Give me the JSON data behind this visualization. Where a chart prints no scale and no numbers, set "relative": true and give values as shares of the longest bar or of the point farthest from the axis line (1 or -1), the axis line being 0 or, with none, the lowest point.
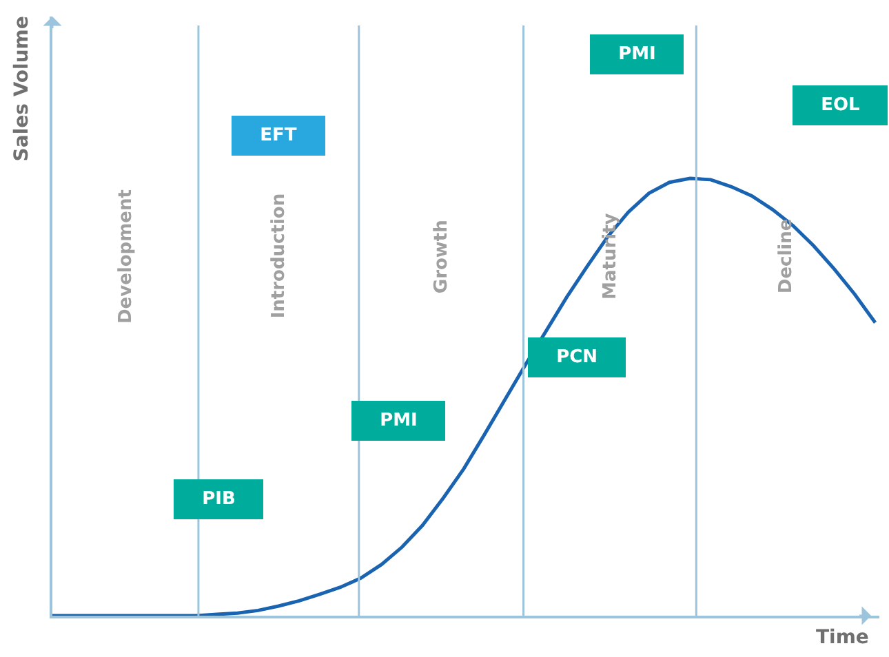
{
  "chart_data": {
    "type": "line",
    "relative": true,
    "ylabel": "Sales Volume",
    "xlabel": "Time",
    "categories": [
      null,
      null,
      null,
      null,
      null,
      null,
      null,
      null,
      null,
      null,
      null,
      null,
      null,
      null,
      null,
      null,
      null,
      null,
      null,
      null,
      null,
      null,
      null,
      null,
      null,
      null,
      null,
      null,
      null,
      null,
      null,
      null,
      null,
      null,
      null,
      null,
      null,
      null,
      null,
      null,
      null
    ],
    "series": [
      {
        "color": "#1a63b0",
        "values": [
          0,
          0,
          0,
          0,
          0,
          0,
          0,
          0,
          0.003,
          0.006,
          0.012,
          0.022,
          0.034,
          0.049,
          0.065,
          0.086,
          0.117,
          0.157,
          0.207,
          0.269,
          0.336,
          0.414,
          0.494,
          0.574,
          0.651,
          0.728,
          0.799,
          0.867,
          0.923,
          0.966,
          0.991,
          1,
          0.997,
          0.981,
          0.96,
          0.929,
          0.892,
          0.846,
          0.793,
          0.735,
          0.67
        ]
      }
    ],
    "annotations": [
      "Development",
      "Introduction",
      "Growth",
      "Maturity",
      "Decline",
      "EFT",
      "PIB",
      "PMI",
      "PCN",
      "PMI",
      "EOL"
    ],
    "grid": "x",
    "marker": "none",
    "line_style": "solid"
  }
}
